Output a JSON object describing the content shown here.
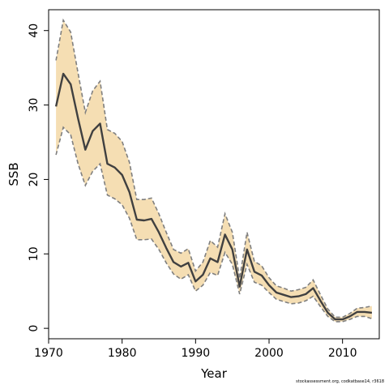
{
  "chart_data": {
    "type": "line",
    "title": "",
    "xlabel": "Year",
    "ylabel": "SSB",
    "xlim": [
      1970,
      2015
    ],
    "ylim": [
      -1.4,
      42.8
    ],
    "x_ticks": [
      1970,
      1980,
      1990,
      2000,
      2010
    ],
    "y_ticks": [
      0,
      10,
      20,
      30,
      40
    ],
    "grid": false,
    "legend": "none",
    "colors": {
      "band": "#f5deb3",
      "bounds": "#7f7f7f",
      "line": "#404040"
    },
    "x": [
      1971,
      1972,
      1973,
      1974,
      1975,
      1976,
      1977,
      1978,
      1979,
      1980,
      1981,
      1982,
      1983,
      1984,
      1985,
      1986,
      1987,
      1988,
      1989,
      1990,
      1991,
      1992,
      1993,
      1994,
      1995,
      1996,
      1997,
      1998,
      1999,
      2000,
      2001,
      2002,
      2003,
      2004,
      2005,
      2006,
      2007,
      2008,
      2009,
      2010,
      2011,
      2012,
      2013,
      2014
    ],
    "series": [
      {
        "role": "estimate",
        "values": [
          29.8,
          34.2,
          32.8,
          28.2,
          24.0,
          26.5,
          27.5,
          22.1,
          21.6,
          20.6,
          18.3,
          14.6,
          14.5,
          14.7,
          12.9,
          10.8,
          8.9,
          8.3,
          8.8,
          6.3,
          7.2,
          9.4,
          8.9,
          12.6,
          10.6,
          5.6,
          10.6,
          7.6,
          7.1,
          5.8,
          4.8,
          4.5,
          4.2,
          4.3,
          4.6,
          5.4,
          3.7,
          2.1,
          1.2,
          1.2,
          1.6,
          2.2,
          2.2,
          2.1
        ]
      },
      {
        "role": "upper",
        "values": [
          36.0,
          41.4,
          39.8,
          34.3,
          29.0,
          31.9,
          33.2,
          26.7,
          26.2,
          25.1,
          22.3,
          17.3,
          17.3,
          17.5,
          15.4,
          12.9,
          10.6,
          10.1,
          10.7,
          7.7,
          8.9,
          11.8,
          10.9,
          15.4,
          12.9,
          6.7,
          12.9,
          9.0,
          8.4,
          6.8,
          5.7,
          5.4,
          5.0,
          5.2,
          5.5,
          6.5,
          4.5,
          2.6,
          1.5,
          1.5,
          2.0,
          2.7,
          2.8,
          3.0
        ]
      },
      {
        "role": "lower",
        "values": [
          23.3,
          27.0,
          26.0,
          22.1,
          19.2,
          21.1,
          22.1,
          17.9,
          17.4,
          16.6,
          14.8,
          11.9,
          11.9,
          12.0,
          10.6,
          8.8,
          7.3,
          6.6,
          7.2,
          5.0,
          5.8,
          7.5,
          7.1,
          10.2,
          8.6,
          4.6,
          8.6,
          6.2,
          5.8,
          4.8,
          3.9,
          3.6,
          3.3,
          3.4,
          3.7,
          4.3,
          2.9,
          1.6,
          0.9,
          0.9,
          1.2,
          1.6,
          1.6,
          1.3
        ]
      }
    ],
    "footnote": "stockassessment.org, codkatbase14, r3618"
  }
}
